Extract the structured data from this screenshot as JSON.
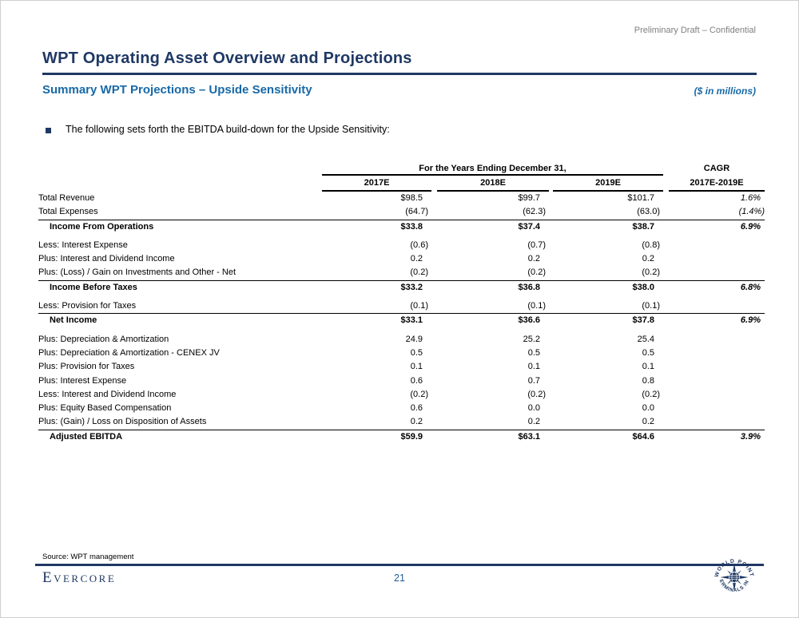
{
  "page": {
    "confidential": "Preliminary Draft – Confidential",
    "title": "WPT Operating Asset Overview and Projections",
    "subtitle": "Summary WPT Projections – Upside Sensitivity",
    "units_note": "($ in millions)",
    "bullet": "The following sets forth the EBITDA build-down for the Upside Sensitivity:"
  },
  "table": {
    "span_header": "For the Years Ending December 31,",
    "cagr_header": "CAGR",
    "columns": [
      "2017E",
      "2018E",
      "2019E"
    ],
    "cagr_subheader": "2017E-2019E",
    "rows": [
      {
        "label": "Total Revenue",
        "values": [
          "$98.5",
          "$99.7",
          "$101.7"
        ],
        "cagr": "1.6%"
      },
      {
        "label": "Total Expenses",
        "values": [
          "(64.7)",
          "(62.3)",
          "(63.0)"
        ],
        "cagr": "(1.4%)"
      },
      {
        "label": "Income From Operations",
        "values": [
          "$33.8",
          "$37.4",
          "$38.7"
        ],
        "cagr": "6.9%",
        "subtotal": true
      },
      {
        "label": "Less: Interest Expense",
        "values": [
          "(0.6)",
          "(0.7)",
          "(0.8)"
        ],
        "cagr": "",
        "gap_before": true
      },
      {
        "label": "Plus: Interest and Dividend Income",
        "values": [
          "0.2",
          "0.2",
          "0.2"
        ],
        "cagr": ""
      },
      {
        "label": "Plus: (Loss) / Gain on Investments and Other - Net",
        "values": [
          "(0.2)",
          "(0.2)",
          "(0.2)"
        ],
        "cagr": ""
      },
      {
        "label": "Income Before Taxes",
        "values": [
          "$33.2",
          "$36.8",
          "$38.0"
        ],
        "cagr": "6.8%",
        "subtotal": true
      },
      {
        "label": "Less: Provision for Taxes",
        "values": [
          "(0.1)",
          "(0.1)",
          "(0.1)"
        ],
        "cagr": "",
        "gap_before": true
      },
      {
        "label": "Net Income",
        "values": [
          "$33.1",
          "$36.6",
          "$37.8"
        ],
        "cagr": "6.9%",
        "subtotal": true
      },
      {
        "label": "Plus: Depreciation & Amortization",
        "values": [
          "24.9",
          "25.2",
          "25.4"
        ],
        "cagr": "",
        "gap_before": true
      },
      {
        "label": "Plus: Depreciation & Amortization - CENEX JV",
        "values": [
          "0.5",
          "0.5",
          "0.5"
        ],
        "cagr": ""
      },
      {
        "label": "Plus: Provision for Taxes",
        "values": [
          "0.1",
          "0.1",
          "0.1"
        ],
        "cagr": ""
      },
      {
        "label": "Plus: Interest Expense",
        "values": [
          "0.6",
          "0.7",
          "0.8"
        ],
        "cagr": ""
      },
      {
        "label": "Less: Interest and Dividend Income",
        "values": [
          "(0.2)",
          "(0.2)",
          "(0.2)"
        ],
        "cagr": ""
      },
      {
        "label": "Plus: Equity Based Compensation",
        "values": [
          "0.6",
          "0.0",
          "0.0"
        ],
        "cagr": ""
      },
      {
        "label": "Plus: (Gain) / Loss on Disposition of Assets",
        "values": [
          "0.2",
          "0.2",
          "0.2"
        ],
        "cagr": ""
      },
      {
        "label": "Adjusted EBITDA",
        "values": [
          "$59.9",
          "$63.1",
          "$64.6"
        ],
        "cagr": "3.9%",
        "subtotal": true
      }
    ]
  },
  "footer": {
    "source": "Source: WPT management",
    "brand": "Evercore",
    "page_number": "21",
    "logo_text_top": "WORLD POINT",
    "logo_text_bottom": "TERMINALS INC"
  },
  "colors": {
    "navy": "#1F3864",
    "accent_blue": "#1769A8",
    "confidential_gray": "#7F7F7F",
    "table_rule": "#000000"
  }
}
